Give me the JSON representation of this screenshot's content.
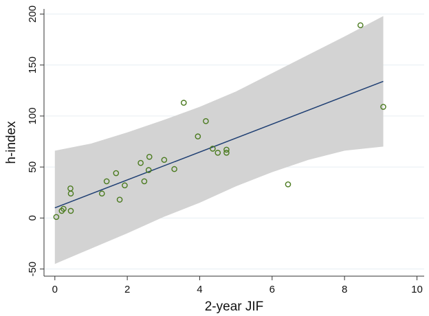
{
  "chart_data": {
    "type": "scatter",
    "xlabel": "2-year JIF",
    "ylabel": "h-index",
    "xlim": [
      -0.3,
      10.2
    ],
    "ylim": [
      -57,
      205
    ],
    "xticks": [
      0,
      2,
      4,
      6,
      8,
      10
    ],
    "yticks": [
      -50,
      0,
      50,
      100,
      150,
      200
    ],
    "xtick_labels": [
      "0",
      "2",
      "4",
      "6",
      "8",
      "10"
    ],
    "ytick_labels": [
      "-50",
      "0",
      "50",
      "100",
      "150",
      "200"
    ],
    "grid": true,
    "legend": "none",
    "colors": {
      "points": "#4a7a1e",
      "fit_line": "#1f3f73",
      "band": "#d3d3d3",
      "grid": "#e6eef2",
      "axis": "#333333"
    },
    "points": [
      {
        "x": 0.04,
        "y": 1
      },
      {
        "x": 0.19,
        "y": 7
      },
      {
        "x": 0.24,
        "y": 9
      },
      {
        "x": 0.43,
        "y": 29
      },
      {
        "x": 0.44,
        "y": 24
      },
      {
        "x": 0.44,
        "y": 7
      },
      {
        "x": 1.3,
        "y": 24
      },
      {
        "x": 1.43,
        "y": 36
      },
      {
        "x": 1.69,
        "y": 44
      },
      {
        "x": 1.79,
        "y": 18
      },
      {
        "x": 1.93,
        "y": 32
      },
      {
        "x": 2.37,
        "y": 54
      },
      {
        "x": 2.47,
        "y": 36
      },
      {
        "x": 2.59,
        "y": 47
      },
      {
        "x": 2.61,
        "y": 60
      },
      {
        "x": 3.02,
        "y": 57
      },
      {
        "x": 3.3,
        "y": 48
      },
      {
        "x": 3.56,
        "y": 113
      },
      {
        "x": 3.95,
        "y": 80
      },
      {
        "x": 4.17,
        "y": 95
      },
      {
        "x": 4.36,
        "y": 68
      },
      {
        "x": 4.5,
        "y": 64
      },
      {
        "x": 4.74,
        "y": 67
      },
      {
        "x": 4.74,
        "y": 64
      },
      {
        "x": 6.44,
        "y": 33
      },
      {
        "x": 8.44,
        "y": 189
      },
      {
        "x": 9.07,
        "y": 109
      }
    ],
    "fit_line": {
      "x": [
        0,
        9.07
      ],
      "y": [
        10,
        134
      ]
    },
    "confidence_band": {
      "x": [
        0,
        1,
        2,
        3,
        4,
        5,
        6,
        7,
        8,
        9.07
      ],
      "upper": [
        66,
        73,
        84,
        96,
        109,
        124,
        142,
        160,
        178,
        198
      ],
      "lower": [
        -45,
        -30,
        -15,
        1,
        15,
        31,
        45,
        57,
        66,
        70
      ]
    }
  }
}
